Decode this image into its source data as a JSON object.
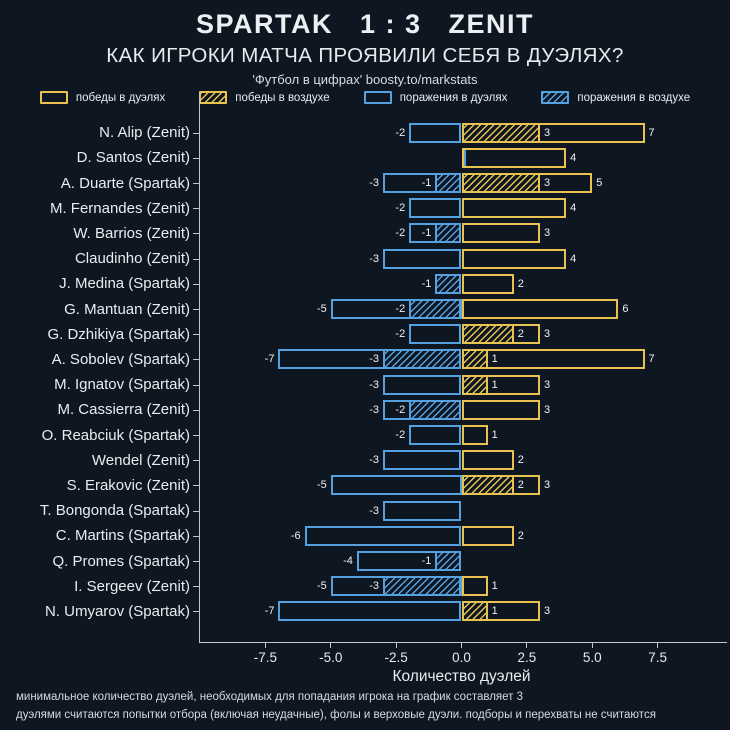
{
  "header": {
    "title": "SPARTAK   1 : 3   ZENIT",
    "subtitle": "КАК ИГРОКИ МАТЧА ПРОЯВИЛИ СЕБЯ В ДУЭЛЯХ?",
    "source": "'Футбол в цифрах' boosty.to/markstats"
  },
  "colors": {
    "background": "#0D1621",
    "yellow": "#E8C24E",
    "blue": "#55A1DF",
    "axis": "#C2C7CC",
    "text": "#EAEDEF"
  },
  "legend": [
    {
      "label": "победы в дуэлях",
      "color": "#E8C24E",
      "hatch": false
    },
    {
      "label": "победы в воздухе",
      "color": "#E8C24E",
      "hatch": true
    },
    {
      "label": "поражения в дуэлях",
      "color": "#55A1DF",
      "hatch": false
    },
    {
      "label": "поражения в воздухе",
      "color": "#55A1DF",
      "hatch": true
    }
  ],
  "chart_data": {
    "type": "bar",
    "orientation": "horizontal",
    "title": "КАК ИГРОКИ МАТЧА ПРОЯВИЛИ СЕБЯ В ДУЭЛЯХ?",
    "xlabel": "Количество дуэлей",
    "ylabel": "",
    "xlim": [
      -10,
      10
    ],
    "grid": false,
    "legend_position": "top",
    "xticks": [
      -7.5,
      -5,
      -2.5,
      0,
      2.5,
      5,
      7.5
    ],
    "xtick_labels": [
      "-7.5",
      "-5.0",
      "-2.5",
      "0.0",
      "2.5",
      "5.0",
      "7.5"
    ],
    "series_names": [
      "победы в дуэлях",
      "победы в воздухе",
      "поражения в дуэлях",
      "поражения в воздухе"
    ],
    "players": [
      {
        "name": "N. Alip (Zenit)",
        "duel_losses": -2,
        "air_losses": null,
        "air_wins": 3,
        "duel_wins": 7
      },
      {
        "name": "D. Santos (Zenit)",
        "duel_losses": 0,
        "air_losses": null,
        "air_wins": null,
        "duel_wins": 4
      },
      {
        "name": "A. Duarte (Spartak)",
        "duel_losses": -3,
        "air_losses": -1,
        "air_wins": 3,
        "duel_wins": 5
      },
      {
        "name": "M. Fernandes (Zenit)",
        "duel_losses": -2,
        "air_losses": null,
        "air_wins": null,
        "duel_wins": 4
      },
      {
        "name": "W. Barrios (Zenit)",
        "duel_losses": -2,
        "air_losses": -1,
        "air_wins": null,
        "duel_wins": 3
      },
      {
        "name": "Claudinho (Zenit)",
        "duel_losses": -3,
        "air_losses": null,
        "air_wins": null,
        "duel_wins": 4
      },
      {
        "name": "J. Medina (Spartak)",
        "duel_losses": -1,
        "air_losses": -1,
        "air_wins": null,
        "duel_wins": 2
      },
      {
        "name": "G. Mantuan (Zenit)",
        "duel_losses": -5,
        "air_losses": -2,
        "air_wins": null,
        "duel_wins": 6
      },
      {
        "name": "G. Dzhikiya (Spartak)",
        "duel_losses": -2,
        "air_losses": null,
        "air_wins": 2,
        "duel_wins": 3
      },
      {
        "name": "A. Sobolev (Spartak)",
        "duel_losses": -7,
        "air_losses": -3,
        "air_wins": 1,
        "duel_wins": 7
      },
      {
        "name": "M. Ignatov (Spartak)",
        "duel_losses": -3,
        "air_losses": null,
        "air_wins": 1,
        "duel_wins": 3
      },
      {
        "name": "M. Cassierra (Zenit)",
        "duel_losses": -3,
        "air_losses": -2,
        "air_wins": null,
        "duel_wins": 3
      },
      {
        "name": "O. Reabciuk (Spartak)",
        "duel_losses": -2,
        "air_losses": null,
        "air_wins": null,
        "duel_wins": 1
      },
      {
        "name": "Wendel (Zenit)",
        "duel_losses": -3,
        "air_losses": null,
        "air_wins": null,
        "duel_wins": 2
      },
      {
        "name": "S. Erakovic (Zenit)",
        "duel_losses": -5,
        "air_losses": null,
        "air_wins": 2,
        "duel_wins": 3
      },
      {
        "name": "T. Bongonda (Spartak)",
        "duel_losses": -3,
        "air_losses": null,
        "air_wins": null,
        "duel_wins": null
      },
      {
        "name": "C. Martins (Spartak)",
        "duel_losses": -6,
        "air_losses": null,
        "air_wins": null,
        "duel_wins": 2
      },
      {
        "name": "Q. Promes (Spartak)",
        "duel_losses": -4,
        "air_losses": -1,
        "air_wins": null,
        "duel_wins": null
      },
      {
        "name": "I. Sergeev (Zenit)",
        "duel_losses": -5,
        "air_losses": -3,
        "air_wins": null,
        "duel_wins": 1
      },
      {
        "name": "N. Umyarov (Spartak)",
        "duel_losses": -7,
        "air_losses": null,
        "air_wins": 1,
        "duel_wins": 3
      }
    ]
  },
  "footnotes": [
    "минимальное количество дуэлей, необходимых для попадания игрока на график составляет 3",
    "дуэлями считаются попытки отбора (включая неудачные), фолы и верховые дуэли. подборы и перехваты не считаются"
  ]
}
